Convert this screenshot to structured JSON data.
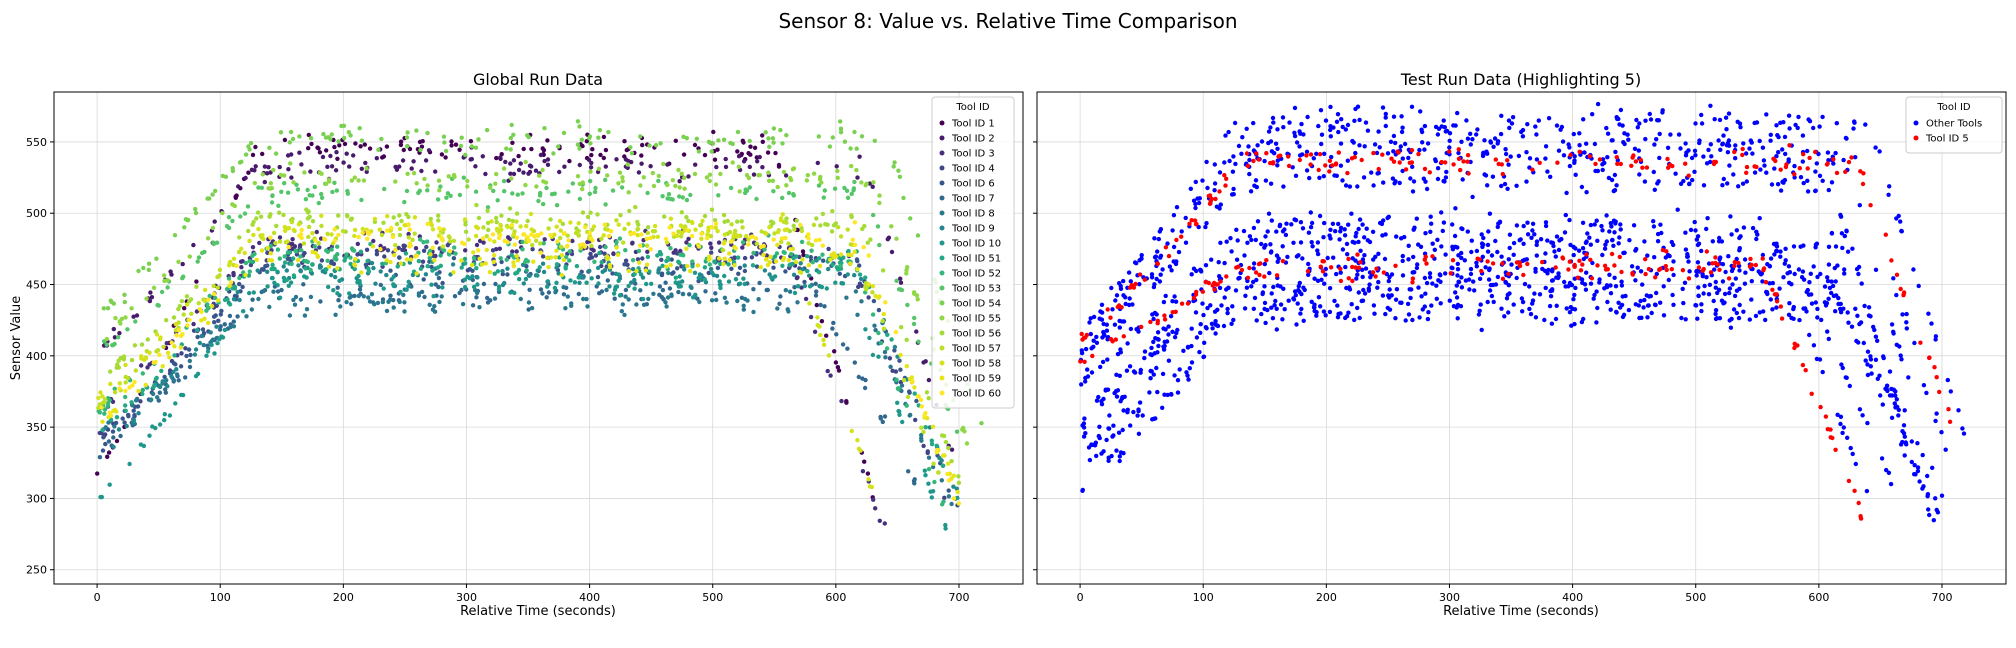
{
  "figure": {
    "suptitle": "Sensor 8: Value vs. Relative Time Comparison"
  },
  "chart_data": [
    {
      "type": "scatter",
      "title": "Global Run Data",
      "xlabel": "Relative Time (seconds)",
      "ylabel": "Sensor Value",
      "xlim": [
        -35,
        752
      ],
      "ylim": [
        240,
        585
      ],
      "xticks": [
        0,
        100,
        200,
        300,
        400,
        500,
        600,
        700
      ],
      "yticks": [
        250,
        300,
        350,
        400,
        450,
        500,
        550
      ],
      "grid": true,
      "legend": {
        "title": "Tool ID",
        "position": "top-right"
      },
      "series": [
        {
          "name": "Tool ID 1",
          "color": "#440154",
          "profile": {
            "t_end": 630,
            "high": 545,
            "start": 318,
            "end": 305
          }
        },
        {
          "name": "Tool ID 2",
          "color": "#481a6c",
          "profile": {
            "t_end": 705,
            "high": 533,
            "start": 402,
            "end": 300
          }
        },
        {
          "name": "Tool ID 3",
          "color": "#472f7d",
          "profile": {
            "t_end": 640,
            "high": 478,
            "start": 360,
            "end": 275
          }
        },
        {
          "name": "Tool ID 4",
          "color": "#414487",
          "profile": {
            "t_end": 690,
            "high": 470,
            "start": 340,
            "end": 300
          }
        },
        {
          "name": "Tool ID 6",
          "color": "#39568c",
          "profile": {
            "t_end": 700,
            "high": 462,
            "start": 335,
            "end": 290
          }
        },
        {
          "name": "Tool ID 7",
          "color": "#31688e",
          "profile": {
            "t_end": 665,
            "high": 445,
            "start": 330,
            "end": 310
          }
        },
        {
          "name": "Tool ID 8",
          "color": "#2a788e",
          "profile": {
            "t_end": 700,
            "high": 438,
            "start": 345,
            "end": 285
          }
        },
        {
          "name": "Tool ID 9",
          "color": "#23888e",
          "profile": {
            "t_end": 700,
            "high": 458,
            "start": 330,
            "end": 300
          }
        },
        {
          "name": "Tool ID 10",
          "color": "#1f988b",
          "profile": {
            "t_end": 690,
            "high": 450,
            "start": 300,
            "end": 280
          }
        },
        {
          "name": "Tool ID 51",
          "color": "#22a884",
          "profile": {
            "t_end": 700,
            "high": 465,
            "start": 345,
            "end": 295
          }
        },
        {
          "name": "Tool ID 52",
          "color": "#35b779",
          "profile": {
            "t_end": 690,
            "high": 472,
            "start": 360,
            "end": 290
          }
        },
        {
          "name": "Tool ID 53",
          "color": "#54c568",
          "profile": {
            "t_end": 700,
            "high": 515,
            "start": 400,
            "end": 345
          }
        },
        {
          "name": "Tool ID 54",
          "color": "#7ad151",
          "profile": {
            "t_end": 720,
            "high": 552,
            "start": 425,
            "end": 350
          }
        },
        {
          "name": "Tool ID 55",
          "color": "#8fd744",
          "profile": {
            "t_end": 710,
            "high": 524,
            "start": 410,
            "end": 335
          }
        },
        {
          "name": "Tool ID 56",
          "color": "#a5db36",
          "profile": {
            "t_end": 700,
            "high": 495,
            "start": 380,
            "end": 315
          }
        },
        {
          "name": "Tool ID 57",
          "color": "#bddf26",
          "profile": {
            "t_end": 690,
            "high": 485,
            "start": 365,
            "end": 300
          }
        },
        {
          "name": "Tool ID 58",
          "color": "#d2e21b",
          "profile": {
            "t_end": 640,
            "high": 488,
            "start": 370,
            "end": 280
          }
        },
        {
          "name": "Tool ID 59",
          "color": "#e5e419",
          "profile": {
            "t_end": 700,
            "high": 468,
            "start": 350,
            "end": 305
          }
        },
        {
          "name": "Tool ID 60",
          "color": "#fde725",
          "profile": {
            "t_end": 700,
            "high": 482,
            "start": 355,
            "end": 295
          }
        }
      ]
    },
    {
      "type": "scatter",
      "title": "Test Run Data (Highlighting 5)",
      "xlabel": "Relative Time (seconds)",
      "ylabel": "",
      "xlim": [
        -35,
        752
      ],
      "ylim": [
        240,
        585
      ],
      "xticks": [
        0,
        100,
        200,
        300,
        400,
        500,
        600,
        700
      ],
      "yticks": [
        250,
        300,
        350,
        400,
        450,
        500,
        550
      ],
      "grid": true,
      "legend": {
        "title": "Tool ID",
        "position": "top-right"
      },
      "series": [
        {
          "name": "Other Tools",
          "color": "#0000ff",
          "profiles": [
            {
              "t_end": 720,
              "high": 565,
              "start": 420,
              "end": 340
            },
            {
              "t_end": 705,
              "high": 550,
              "start": 410,
              "end": 330
            },
            {
              "t_end": 700,
              "high": 540,
              "start": 400,
              "end": 300
            },
            {
              "t_end": 690,
              "high": 522,
              "start": 395,
              "end": 290
            },
            {
              "t_end": 640,
              "high": 492,
              "start": 380,
              "end": 300
            },
            {
              "t_end": 700,
              "high": 480,
              "start": 360,
              "end": 285
            },
            {
              "t_end": 660,
              "high": 470,
              "start": 350,
              "end": 310
            },
            {
              "t_end": 700,
              "high": 458,
              "start": 340,
              "end": 270
            },
            {
              "t_end": 690,
              "high": 450,
              "start": 330,
              "end": 295
            },
            {
              "t_end": 700,
              "high": 440,
              "start": 320,
              "end": 300
            },
            {
              "t_end": 700,
              "high": 430,
              "start": 305,
              "end": 285
            }
          ]
        },
        {
          "name": "Tool ID 5",
          "color": "#ff0000",
          "profiles": [
            {
              "t_end": 710,
              "high": 536,
              "start": 410,
              "end": 350
            },
            {
              "t_end": 635,
              "high": 462,
              "start": 395,
              "end": 290
            }
          ]
        }
      ]
    }
  ]
}
